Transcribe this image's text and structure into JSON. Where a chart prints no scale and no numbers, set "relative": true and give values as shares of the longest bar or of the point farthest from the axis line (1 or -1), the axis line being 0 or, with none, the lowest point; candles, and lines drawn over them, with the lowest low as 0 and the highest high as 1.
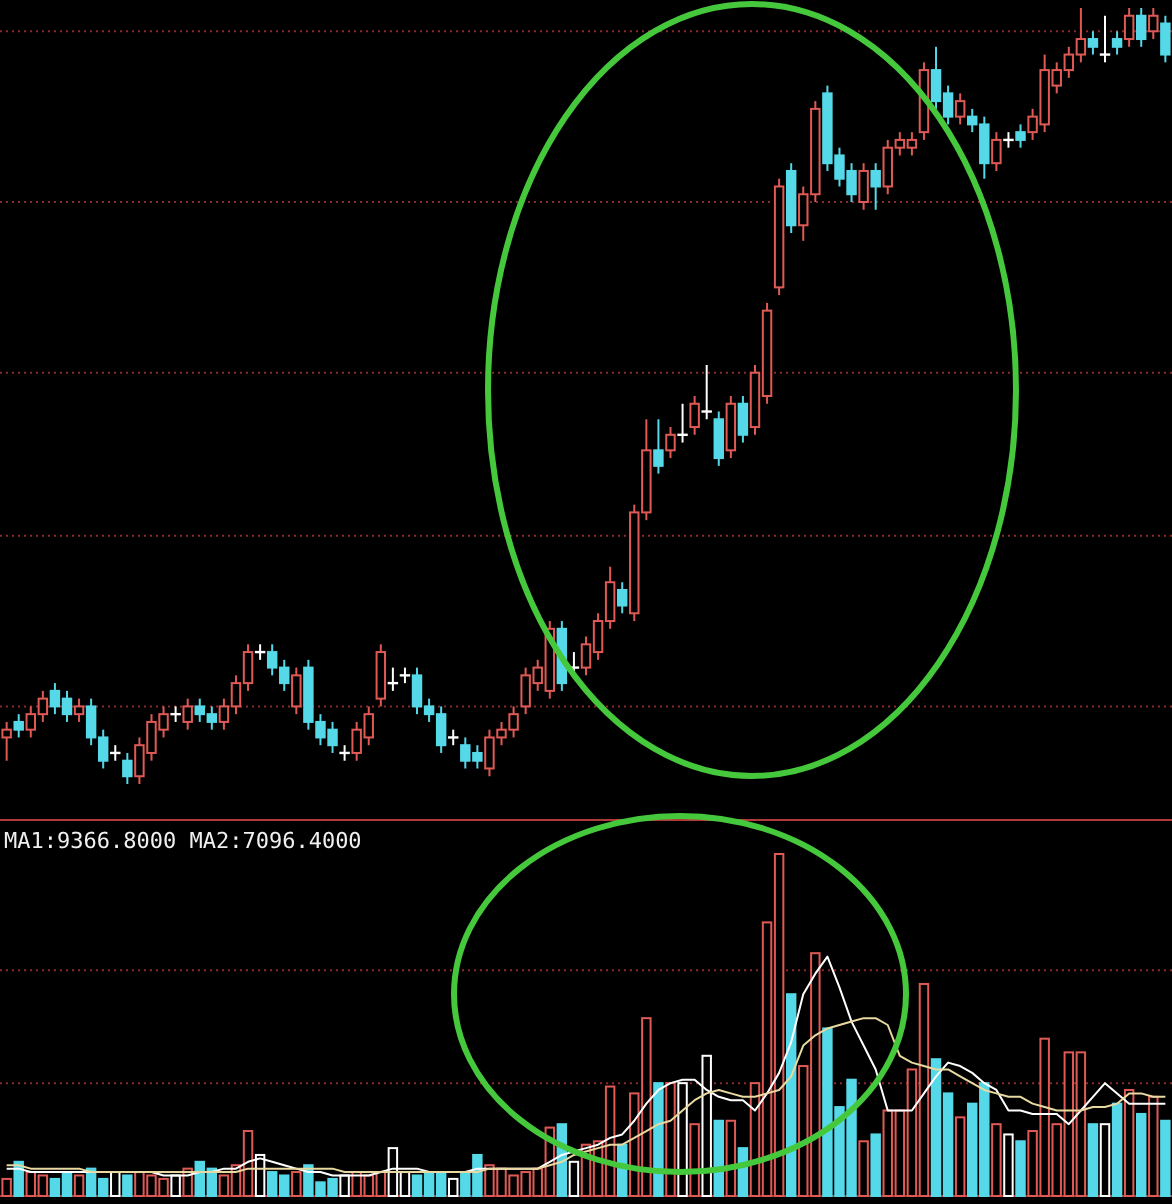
{
  "chart_data": [
    {
      "type": "candlestick",
      "relative": true,
      "ref_lines": [
        {
          "axis": "y",
          "value": 0.97,
          "color": "#8a2a2a",
          "line_style": "dotted"
        },
        {
          "axis": "y",
          "value": 0.75,
          "color": "#8a2a2a",
          "line_style": "dotted"
        },
        {
          "axis": "y",
          "value": 0.53,
          "color": "#8a2a2a",
          "line_style": "dotted"
        },
        {
          "axis": "y",
          "value": 0.32,
          "color": "#8a2a2a",
          "line_style": "dotted"
        },
        {
          "axis": "y",
          "value": 0.1,
          "color": "#8a2a2a",
          "line_style": "dotted"
        }
      ],
      "categories": [
        null,
        null,
        null,
        null,
        null,
        null,
        null,
        null,
        null,
        null,
        null,
        null,
        null,
        null,
        null,
        null,
        null,
        null,
        null,
        null,
        null,
        null,
        null,
        null,
        null,
        null,
        null,
        null,
        null,
        null,
        null,
        null,
        null,
        null,
        null,
        null,
        null,
        null,
        null,
        null,
        null,
        null,
        null,
        null,
        null,
        null,
        null,
        null,
        null,
        null,
        null,
        null,
        null,
        null,
        null,
        null,
        null,
        null,
        null,
        null,
        null,
        null,
        null,
        null,
        null,
        null,
        null,
        null,
        null,
        null,
        null,
        null,
        null,
        null,
        null,
        null,
        null,
        null,
        null,
        null,
        null,
        null,
        null,
        null,
        null,
        null,
        null,
        null,
        null,
        null,
        null,
        null,
        null,
        null,
        null,
        null,
        null
      ],
      "ohlc": [
        [
          0.06,
          0.08,
          0.03,
          0.07
        ],
        [
          0.08,
          0.09,
          0.06,
          0.07
        ],
        [
          0.07,
          0.1,
          0.06,
          0.09
        ],
        [
          0.09,
          0.12,
          0.08,
          0.11
        ],
        [
          0.12,
          0.13,
          0.09,
          0.1
        ],
        [
          0.11,
          0.12,
          0.08,
          0.09
        ],
        [
          0.09,
          0.11,
          0.08,
          0.1
        ],
        [
          0.1,
          0.11,
          0.05,
          0.06
        ],
        [
          0.06,
          0.07,
          0.02,
          0.03
        ],
        [
          0.04,
          0.05,
          0.03,
          0.04
        ],
        [
          0.03,
          0.04,
          0,
          0.01
        ],
        [
          0.01,
          0.06,
          0,
          0.05
        ],
        [
          0.04,
          0.09,
          0.03,
          0.08
        ],
        [
          0.07,
          0.1,
          0.06,
          0.09
        ],
        [
          0.09,
          0.1,
          0.08,
          0.09
        ],
        [
          0.08,
          0.11,
          0.07,
          0.1
        ],
        [
          0.1,
          0.11,
          0.08,
          0.09
        ],
        [
          0.09,
          0.1,
          0.07,
          0.08
        ],
        [
          0.08,
          0.11,
          0.07,
          0.1
        ],
        [
          0.1,
          0.14,
          0.09,
          0.13
        ],
        [
          0.13,
          0.18,
          0.12,
          0.17
        ],
        [
          0.17,
          0.18,
          0.16,
          0.17
        ],
        [
          0.17,
          0.18,
          0.14,
          0.15
        ],
        [
          0.15,
          0.16,
          0.12,
          0.13
        ],
        [
          0.1,
          0.15,
          0.09,
          0.14
        ],
        [
          0.15,
          0.16,
          0.07,
          0.08
        ],
        [
          0.08,
          0.09,
          0.05,
          0.06
        ],
        [
          0.07,
          0.08,
          0.04,
          0.05
        ],
        [
          0.04,
          0.05,
          0.03,
          0.04
        ],
        [
          0.04,
          0.08,
          0.03,
          0.07
        ],
        [
          0.06,
          0.1,
          0.05,
          0.09
        ],
        [
          0.11,
          0.18,
          0.1,
          0.17
        ],
        [
          0.13,
          0.15,
          0.12,
          0.13
        ],
        [
          0.14,
          0.15,
          0.13,
          0.14
        ],
        [
          0.14,
          0.15,
          0.09,
          0.1
        ],
        [
          0.1,
          0.11,
          0.08,
          0.09
        ],
        [
          0.09,
          0.1,
          0.04,
          0.05
        ],
        [
          0.06,
          0.07,
          0.05,
          0.06
        ],
        [
          0.05,
          0.06,
          0.02,
          0.03
        ],
        [
          0.04,
          0.05,
          0.02,
          0.03
        ],
        [
          0.02,
          0.07,
          0.01,
          0.06
        ],
        [
          0.06,
          0.08,
          0.05,
          0.07
        ],
        [
          0.07,
          0.1,
          0.06,
          0.09
        ],
        [
          0.1,
          0.15,
          0.09,
          0.14
        ],
        [
          0.13,
          0.16,
          0.12,
          0.15
        ],
        [
          0.12,
          0.21,
          0.11,
          0.2
        ],
        [
          0.2,
          0.21,
          0.12,
          0.13
        ],
        [
          0.15,
          0.17,
          0.14,
          0.15
        ],
        [
          0.15,
          0.19,
          0.14,
          0.18
        ],
        [
          0.17,
          0.22,
          0.16,
          0.21
        ],
        [
          0.21,
          0.28,
          0.2,
          0.26
        ],
        [
          0.25,
          0.26,
          0.22,
          0.23
        ],
        [
          0.22,
          0.36,
          0.21,
          0.35
        ],
        [
          0.35,
          0.47,
          0.34,
          0.43
        ],
        [
          0.43,
          0.47,
          0.4,
          0.41
        ],
        [
          0.43,
          0.46,
          0.42,
          0.45
        ],
        [
          0.45,
          0.49,
          0.44,
          0.45
        ],
        [
          0.46,
          0.5,
          0.45,
          0.49
        ],
        [
          0.48,
          0.54,
          0.47,
          0.48
        ],
        [
          0.47,
          0.48,
          0.41,
          0.42
        ],
        [
          0.43,
          0.5,
          0.42,
          0.49
        ],
        [
          0.49,
          0.5,
          0.44,
          0.45
        ],
        [
          0.46,
          0.54,
          0.45,
          0.53
        ],
        [
          0.5,
          0.62,
          0.49,
          0.61
        ],
        [
          0.64,
          0.78,
          0.63,
          0.77
        ],
        [
          0.79,
          0.8,
          0.71,
          0.72
        ],
        [
          0.72,
          0.77,
          0.7,
          0.76
        ],
        [
          0.76,
          0.88,
          0.75,
          0.87
        ],
        [
          0.89,
          0.9,
          0.79,
          0.8
        ],
        [
          0.81,
          0.82,
          0.77,
          0.78
        ],
        [
          0.79,
          0.8,
          0.75,
          0.76
        ],
        [
          0.75,
          0.8,
          0.74,
          0.79
        ],
        [
          0.79,
          0.8,
          0.74,
          0.77
        ],
        [
          0.77,
          0.83,
          0.76,
          0.82
        ],
        [
          0.82,
          0.84,
          0.81,
          0.83
        ],
        [
          0.82,
          0.84,
          0.81,
          0.83
        ],
        [
          0.84,
          0.93,
          0.83,
          0.92
        ],
        [
          0.92,
          0.95,
          0.87,
          0.88
        ],
        [
          0.89,
          0.9,
          0.85,
          0.86
        ],
        [
          0.86,
          0.89,
          0.85,
          0.88
        ],
        [
          0.86,
          0.87,
          0.84,
          0.85
        ],
        [
          0.85,
          0.86,
          0.78,
          0.8
        ],
        [
          0.8,
          0.84,
          0.79,
          0.83
        ],
        [
          0.83,
          0.84,
          0.82,
          0.83
        ],
        [
          0.84,
          0.85,
          0.82,
          0.83
        ],
        [
          0.84,
          0.87,
          0.83,
          0.86
        ],
        [
          0.85,
          0.94,
          0.84,
          0.92
        ],
        [
          0.9,
          0.93,
          0.89,
          0.92
        ],
        [
          0.92,
          0.95,
          0.91,
          0.94
        ],
        [
          0.94,
          1,
          0.93,
          0.96
        ],
        [
          0.96,
          0.97,
          0.94,
          0.95
        ],
        [
          0.94,
          0.99,
          0.93,
          0.94
        ],
        [
          0.96,
          0.97,
          0.94,
          0.95
        ],
        [
          0.96,
          1,
          0.95,
          0.99
        ],
        [
          0.99,
          1,
          0.95,
          0.96
        ],
        [
          0.97,
          1,
          0.96,
          0.99
        ],
        [
          0.98,
          0.99,
          0.93,
          0.94
        ]
      ],
      "colors": [
        "#e05a55",
        "#55d9e8",
        "#e05a55",
        "#e05a55",
        "#55d9e8",
        "#55d9e8",
        "#e05a55",
        "#55d9e8",
        "#55d9e8",
        "#ffffff",
        "#55d9e8",
        "#e05a55",
        "#e05a55",
        "#e05a55",
        "#ffffff",
        "#e05a55",
        "#55d9e8",
        "#55d9e8",
        "#e05a55",
        "#e05a55",
        "#e05a55",
        "#ffffff",
        "#55d9e8",
        "#55d9e8",
        "#e05a55",
        "#55d9e8",
        "#55d9e8",
        "#55d9e8",
        "#ffffff",
        "#e05a55",
        "#e05a55",
        "#e05a55",
        "#ffffff",
        "#ffffff",
        "#55d9e8",
        "#55d9e8",
        "#55d9e8",
        "#ffffff",
        "#55d9e8",
        "#55d9e8",
        "#e05a55",
        "#e05a55",
        "#e05a55",
        "#e05a55",
        "#e05a55",
        "#e05a55",
        "#55d9e8",
        "#ffffff",
        "#e05a55",
        "#e05a55",
        "#e05a55",
        "#55d9e8",
        "#e05a55",
        "#e05a55",
        "#55d9e8",
        "#e05a55",
        "#ffffff",
        "#e05a55",
        "#ffffff",
        "#55d9e8",
        "#e05a55",
        "#55d9e8",
        "#e05a55",
        "#e05a55",
        "#e05a55",
        "#55d9e8",
        "#e05a55",
        "#e05a55",
        "#55d9e8",
        "#55d9e8",
        "#55d9e8",
        "#e05a55",
        "#55d9e8",
        "#e05a55",
        "#e05a55",
        "#e05a55",
        "#e05a55",
        "#55d9e8",
        "#55d9e8",
        "#e05a55",
        "#55d9e8",
        "#55d9e8",
        "#e05a55",
        "#ffffff",
        "#55d9e8",
        "#e05a55",
        "#e05a55",
        "#e05a55",
        "#e05a55",
        "#e05a55",
        "#55d9e8",
        "#ffffff",
        "#55d9e8",
        "#e05a55",
        "#55d9e8",
        "#e05a55",
        "#55d9e8"
      ]
    },
    {
      "type": "bar",
      "relative": true,
      "ref_lines": [
        {
          "axis": "y",
          "value": 0.66,
          "color": "#8a2a2a",
          "line_style": "dotted"
        },
        {
          "axis": "y",
          "value": 0.33,
          "color": "#8a2a2a",
          "line_style": "dotted"
        }
      ],
      "annotations": [
        "MA1:9366.8000 MA2:7096.4000"
      ],
      "categories": [
        null,
        null,
        null,
        null,
        null,
        null,
        null,
        null,
        null,
        null,
        null,
        null,
        null,
        null,
        null,
        null,
        null,
        null,
        null,
        null,
        null,
        null,
        null,
        null,
        null,
        null,
        null,
        null,
        null,
        null,
        null,
        null,
        null,
        null,
        null,
        null,
        null,
        null,
        null,
        null,
        null,
        null,
        null,
        null,
        null,
        null,
        null,
        null,
        null,
        null,
        null,
        null,
        null,
        null,
        null,
        null,
        null,
        null,
        null,
        null,
        null,
        null,
        null,
        null,
        null,
        null,
        null,
        null,
        null,
        null,
        null,
        null,
        null,
        null,
        null,
        null,
        null,
        null,
        null,
        null,
        null,
        null,
        null,
        null,
        null,
        null,
        null,
        null,
        null,
        null,
        null,
        null,
        null,
        null,
        null,
        null,
        null
      ],
      "series": [
        {
          "type": "bar",
          "values": [
            0.05,
            0.1,
            0.07,
            0.06,
            0.05,
            0.07,
            0.06,
            0.08,
            0.05,
            0.07,
            0.06,
            0.07,
            0.06,
            0.05,
            0.06,
            0.08,
            0.1,
            0.08,
            0.06,
            0.09,
            0.19,
            0.12,
            0.07,
            0.06,
            0.07,
            0.09,
            0.04,
            0.05,
            0.06,
            0.07,
            0.06,
            0.07,
            0.14,
            0.07,
            0.06,
            0.07,
            0.07,
            0.05,
            0.07,
            0.12,
            0.09,
            0.08,
            0.06,
            0.07,
            0.08,
            0.2,
            0.21,
            0.1,
            0.15,
            0.16,
            0.32,
            0.15,
            0.3,
            0.52,
            0.33,
            0.33,
            0.33,
            0.21,
            0.41,
            0.22,
            0.22,
            0.14,
            0.33,
            0.8,
            1,
            0.59,
            0.38,
            0.71,
            0.49,
            0.26,
            0.34,
            0.16,
            0.18,
            0.25,
            0.25,
            0.37,
            0.62,
            0.4,
            0.3,
            0.23,
            0.27,
            0.33,
            0.21,
            0.18,
            0.16,
            0.19,
            0.46,
            0.21,
            0.42,
            0.42,
            0.21,
            0.21,
            0.27,
            0.31,
            0.24,
            0.29,
            0.22
          ],
          "colors": [
            "#e05a55",
            "#55d9e8",
            "#e05a55",
            "#e05a55",
            "#55d9e8",
            "#55d9e8",
            "#e05a55",
            "#55d9e8",
            "#55d9e8",
            "#ffffff",
            "#55d9e8",
            "#e05a55",
            "#e05a55",
            "#e05a55",
            "#ffffff",
            "#e05a55",
            "#55d9e8",
            "#55d9e8",
            "#e05a55",
            "#e05a55",
            "#e05a55",
            "#ffffff",
            "#55d9e8",
            "#55d9e8",
            "#e05a55",
            "#55d9e8",
            "#55d9e8",
            "#55d9e8",
            "#ffffff",
            "#e05a55",
            "#e05a55",
            "#e05a55",
            "#ffffff",
            "#ffffff",
            "#55d9e8",
            "#55d9e8",
            "#55d9e8",
            "#ffffff",
            "#55d9e8",
            "#55d9e8",
            "#e05a55",
            "#e05a55",
            "#e05a55",
            "#e05a55",
            "#e05a55",
            "#e05a55",
            "#55d9e8",
            "#ffffff",
            "#e05a55",
            "#e05a55",
            "#e05a55",
            "#55d9e8",
            "#e05a55",
            "#e05a55",
            "#55d9e8",
            "#e05a55",
            "#ffffff",
            "#e05a55",
            "#ffffff",
            "#55d9e8",
            "#e05a55",
            "#55d9e8",
            "#e05a55",
            "#e05a55",
            "#e05a55",
            "#55d9e8",
            "#e05a55",
            "#e05a55",
            "#55d9e8",
            "#55d9e8",
            "#55d9e8",
            "#e05a55",
            "#55d9e8",
            "#e05a55",
            "#e05a55",
            "#e05a55",
            "#e05a55",
            "#55d9e8",
            "#55d9e8",
            "#e05a55",
            "#55d9e8",
            "#55d9e8",
            "#e05a55",
            "#ffffff",
            "#55d9e8",
            "#e05a55",
            "#e05a55",
            "#e05a55",
            "#e05a55",
            "#e05a55",
            "#55d9e8",
            "#ffffff",
            "#55d9e8",
            "#e05a55",
            "#55d9e8",
            "#e05a55",
            "#55d9e8"
          ]
        },
        {
          "type": "line",
          "color": "#ffffff",
          "values": [
            0.08,
            0.08,
            0.07,
            0.07,
            0.07,
            0.07,
            0.07,
            0.07,
            0.07,
            0.07,
            0.07,
            0.07,
            0.07,
            0.06,
            0.06,
            0.06,
            0.07,
            0.07,
            0.08,
            0.08,
            0.1,
            0.11,
            0.1,
            0.09,
            0.08,
            0.07,
            0.07,
            0.06,
            0.06,
            0.06,
            0.06,
            0.07,
            0.08,
            0.08,
            0.08,
            0.07,
            0.07,
            0.07,
            0.07,
            0.08,
            0.08,
            0.08,
            0.08,
            0.08,
            0.08,
            0.1,
            0.12,
            0.13,
            0.14,
            0.15,
            0.17,
            0.18,
            0.22,
            0.27,
            0.31,
            0.33,
            0.34,
            0.34,
            0.31,
            0.29,
            0.28,
            0.28,
            0.25,
            0.3,
            0.36,
            0.45,
            0.59,
            0.65,
            0.7,
            0.61,
            0.51,
            0.44,
            0.37,
            0.25,
            0.25,
            0.25,
            0.3,
            0.35,
            0.39,
            0.38,
            0.36,
            0.33,
            0.31,
            0.25,
            0.25,
            0.24,
            0.24,
            0.24,
            0.21,
            0.25,
            0.29,
            0.33,
            0.3,
            0.27,
            0.27,
            0.27,
            0.27
          ]
        },
        {
          "type": "line",
          "color": "#e8d9a0",
          "values": [
            0.09,
            0.09,
            0.08,
            0.08,
            0.08,
            0.08,
            0.08,
            0.07,
            0.07,
            0.07,
            0.07,
            0.07,
            0.07,
            0.07,
            0.07,
            0.07,
            0.07,
            0.07,
            0.07,
            0.07,
            0.08,
            0.08,
            0.08,
            0.08,
            0.08,
            0.08,
            0.08,
            0.08,
            0.07,
            0.07,
            0.07,
            0.07,
            0.07,
            0.07,
            0.07,
            0.07,
            0.07,
            0.07,
            0.07,
            0.07,
            0.08,
            0.08,
            0.08,
            0.08,
            0.08,
            0.09,
            0.1,
            0.12,
            0.13,
            0.14,
            0.15,
            0.15,
            0.17,
            0.19,
            0.21,
            0.22,
            0.25,
            0.28,
            0.3,
            0.31,
            0.3,
            0.29,
            0.29,
            0.3,
            0.31,
            0.35,
            0.44,
            0.47,
            0.49,
            0.5,
            0.51,
            0.52,
            0.52,
            0.5,
            0.41,
            0.39,
            0.38,
            0.37,
            0.37,
            0.35,
            0.33,
            0.31,
            0.3,
            0.29,
            0.29,
            0.27,
            0.26,
            0.25,
            0.25,
            0.25,
            0.26,
            0.26,
            0.27,
            0.3,
            0.3,
            0.29,
            0.29
          ]
        }
      ]
    }
  ]
}
